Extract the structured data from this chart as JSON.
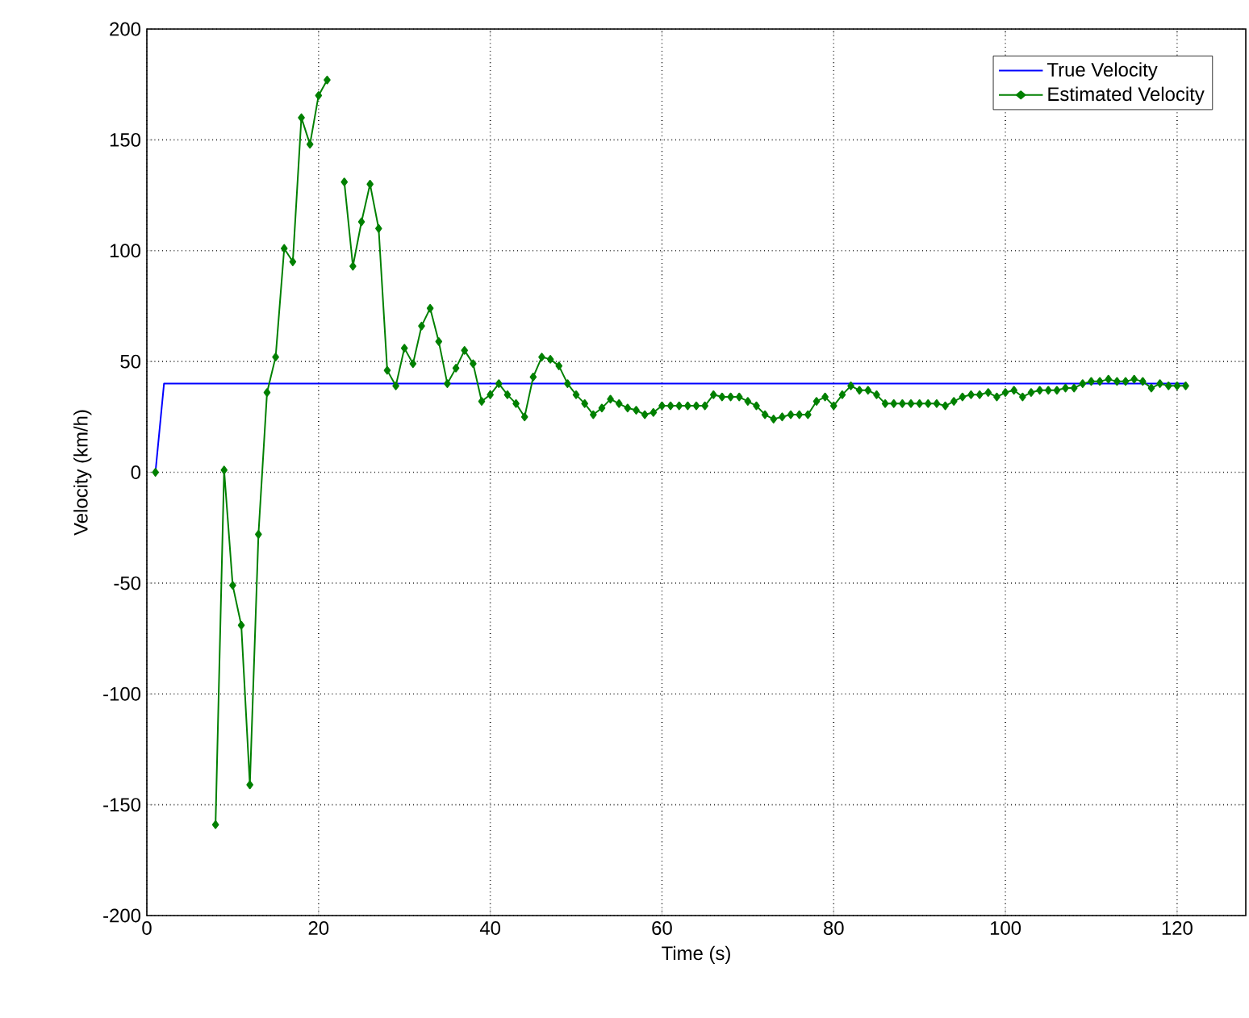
{
  "chart_data": {
    "type": "line",
    "xlabel": "Time (s)",
    "ylabel": "Velocity (km/h)",
    "xlim": [
      0,
      128
    ],
    "ylim": [
      -200,
      200
    ],
    "xticks": [
      0,
      20,
      40,
      60,
      80,
      100,
      120
    ],
    "yticks": [
      -200,
      -150,
      -100,
      -50,
      0,
      50,
      100,
      150,
      200
    ],
    "grid": true,
    "legend": "top right",
    "x": [
      1,
      2,
      3,
      4,
      5,
      6,
      7,
      8,
      9,
      10,
      11,
      12,
      13,
      14,
      15,
      16,
      17,
      18,
      19,
      20,
      21,
      22,
      23,
      24,
      25,
      26,
      27,
      28,
      29,
      30,
      31,
      32,
      33,
      34,
      35,
      36,
      37,
      38,
      39,
      40,
      41,
      42,
      43,
      44,
      45,
      46,
      47,
      48,
      49,
      50,
      51,
      52,
      53,
      54,
      55,
      56,
      57,
      58,
      59,
      60,
      61,
      62,
      63,
      64,
      65,
      66,
      67,
      68,
      69,
      70,
      71,
      72,
      73,
      74,
      75,
      76,
      77,
      78,
      79,
      80,
      81,
      82,
      83,
      84,
      85,
      86,
      87,
      88,
      89,
      90,
      91,
      92,
      93,
      94,
      95,
      96,
      97,
      98,
      99,
      100,
      101,
      102,
      103,
      104,
      105,
      106,
      107,
      108,
      109,
      110,
      111,
      112,
      113,
      114,
      115,
      116,
      117,
      118,
      119,
      120,
      121
    ],
    "series": [
      {
        "name": "True Velocity",
        "color": "#0000ff",
        "marker": "none",
        "x": [
          1,
          2,
          121
        ],
        "values": [
          0,
          40,
          40
        ]
      },
      {
        "name": "Estimated Velocity",
        "color": "#008000",
        "marker": "diamond",
        "values": [
          0,
          null,
          null,
          null,
          null,
          null,
          null,
          -159,
          1,
          -51,
          -69,
          -141,
          -28,
          36,
          52,
          101,
          95,
          160,
          148,
          170,
          177,
          null,
          131,
          93,
          113,
          130,
          110,
          46,
          39,
          56,
          49,
          66,
          74,
          59,
          40,
          47,
          55,
          49,
          32,
          35,
          40,
          35,
          31,
          25,
          43,
          52,
          51,
          48,
          40,
          35,
          31,
          26,
          29,
          33,
          31,
          29,
          28,
          26,
          27,
          30,
          30,
          30,
          30,
          30,
          30,
          35,
          34,
          34,
          34,
          32,
          30,
          26,
          24,
          25,
          26,
          26,
          26,
          32,
          34,
          30,
          35,
          39,
          37,
          37,
          35,
          31,
          31,
          31,
          31,
          31,
          31,
          31,
          30,
          32,
          34,
          35,
          35,
          36,
          34,
          36,
          37,
          34,
          36,
          37,
          37,
          37,
          38,
          38,
          40,
          41,
          41,
          42,
          41,
          41,
          42,
          41,
          38,
          40,
          39,
          39,
          39
        ]
      }
    ]
  }
}
